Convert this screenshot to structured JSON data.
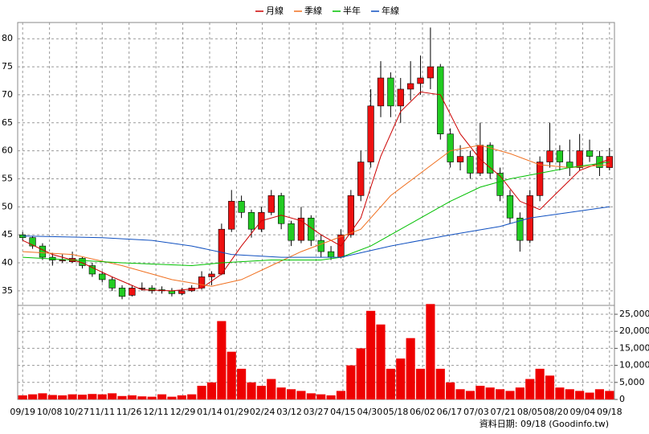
{
  "source": "資料日期: 09/18 (Goodinfo.tw)",
  "chart_data": [
    {
      "type": "candlestick",
      "up_color": "#ee1111",
      "down_color": "#22cc22",
      "xlim": [
        -0.5,
        59.5
      ],
      "ylim": [
        32.4,
        82.9
      ],
      "yticks": [
        35,
        40,
        45,
        50,
        55,
        60,
        65,
        70,
        75,
        80
      ],
      "grid": true,
      "open": [
        45,
        44.5,
        43,
        41,
        40.5,
        40.2,
        40.8,
        39.5,
        38,
        37,
        35.5,
        34.2,
        35.5,
        35.5,
        35.2,
        35,
        34.5,
        35,
        35.5,
        37.5,
        38,
        46,
        51,
        49,
        46,
        49,
        52,
        47,
        44,
        48,
        44,
        42,
        41,
        45,
        52,
        58,
        68,
        73,
        68,
        71,
        72,
        73,
        75,
        63,
        58,
        59,
        56,
        61,
        56,
        52,
        48,
        44,
        52,
        58,
        60,
        58,
        57,
        60,
        59,
        57
      ],
      "high": [
        45.5,
        44.8,
        43.5,
        41.8,
        41.5,
        42,
        41,
        40,
        38.5,
        37.5,
        36,
        36,
        36.5,
        36,
        35.8,
        35.5,
        35.5,
        36,
        38.5,
        38.5,
        47,
        53,
        52,
        49.5,
        50,
        53,
        52.5,
        47.5,
        50,
        48.5,
        45,
        43,
        46,
        53,
        60,
        71,
        76,
        74,
        73,
        76,
        77,
        82,
        75.5,
        64,
        61,
        60,
        65,
        61.5,
        57,
        53,
        49,
        53,
        59,
        65,
        61,
        62,
        63,
        62,
        60,
        60.5
      ],
      "low": [
        44,
        42.5,
        40.5,
        39.5,
        40,
        40,
        39,
        37.5,
        36.5,
        35,
        33.5,
        34,
        35,
        34.5,
        34.5,
        34,
        34.2,
        34.8,
        35.2,
        36,
        37.8,
        45.5,
        48,
        44.5,
        45.5,
        48.5,
        46,
        43,
        43.5,
        43,
        41,
        40.5,
        40.8,
        44.5,
        51,
        57,
        66,
        66,
        65,
        69,
        70,
        71,
        62,
        57,
        56.5,
        55,
        55.5,
        55,
        51,
        47,
        42,
        43.5,
        51,
        57,
        56.5,
        55.5,
        56.5,
        58,
        55.5,
        56.5
      ],
      "close": [
        44.5,
        43,
        41,
        40.5,
        40.5,
        40.8,
        39.5,
        38,
        37,
        35.5,
        34,
        35.5,
        35.5,
        35,
        35,
        34.5,
        35,
        35.5,
        37.5,
        38,
        46,
        51,
        49,
        46,
        49,
        52,
        47,
        44,
        48,
        44,
        42,
        41,
        45,
        52,
        58,
        68,
        73,
        68,
        71,
        72,
        73,
        75,
        63,
        58,
        59,
        56,
        61,
        56,
        52,
        48,
        44,
        52,
        58,
        60,
        58,
        57,
        60,
        59,
        57,
        59
      ],
      "series": [
        {
          "name": "月線",
          "color": "#cc0000",
          "x": [
            0,
            3,
            6,
            9,
            12,
            15,
            18,
            20,
            22,
            24,
            26,
            28,
            30,
            32,
            34,
            36,
            38,
            40,
            42,
            44,
            46,
            48,
            50,
            52,
            54,
            56,
            59
          ],
          "values": [
            44,
            41.5,
            40,
            37.5,
            35.2,
            35,
            35.5,
            38,
            43,
            47.5,
            48.5,
            47.5,
            45,
            43,
            48,
            59,
            67,
            70.5,
            70,
            63,
            58.5,
            55.5,
            51,
            49.5,
            53,
            56.5,
            58.5
          ]
        },
        {
          "name": "季線",
          "color": "#f07020",
          "x": [
            0,
            5,
            10,
            15,
            19,
            22,
            25,
            28,
            31,
            34,
            37,
            40,
            43,
            46,
            49,
            52,
            55,
            59
          ],
          "values": [
            42,
            41.5,
            39.5,
            37,
            35.8,
            37,
            39.5,
            42,
            44,
            46,
            52,
            56,
            60,
            61,
            59.5,
            57.5,
            57,
            57.5
          ]
        },
        {
          "name": "半年",
          "color": "#00c000",
          "x": [
            0,
            5,
            10,
            17,
            20,
            25,
            30,
            32,
            35,
            37,
            40,
            43,
            46,
            49,
            52,
            55,
            59
          ],
          "values": [
            41,
            40.5,
            40,
            39.5,
            40,
            40.5,
            40.5,
            41,
            43,
            45,
            48,
            51,
            53.5,
            55,
            56,
            57,
            58
          ]
        },
        {
          "name": "年線",
          "color": "#1050c0",
          "x": [
            0,
            8,
            13,
            17,
            21,
            26,
            30,
            32,
            37,
            43,
            48,
            51,
            55,
            59
          ],
          "values": [
            44.8,
            44.5,
            44,
            43,
            41.5,
            41,
            41,
            41,
            43,
            45,
            46.5,
            48,
            49,
            50
          ]
        }
      ]
    },
    {
      "type": "bar",
      "color": "#ee0000",
      "xlim": [
        -0.5,
        59.5
      ],
      "ylim": [
        0,
        27600
      ],
      "yticks": [
        0,
        {
          "value": 5000,
          "label": "5,000"
        },
        {
          "value": 10000,
          "label": "10,000"
        },
        {
          "value": 15000,
          "label": "15,000"
        },
        {
          "value": 20000,
          "label": "20,000"
        },
        {
          "value": 25000,
          "label": "25,000"
        }
      ],
      "xticks": [
        {
          "value": 0,
          "label": "09/19"
        },
        {
          "value": 2.7,
          "label": "10/08"
        },
        {
          "value": 5.4,
          "label": "10/27"
        },
        {
          "value": 8,
          "label": "11/11"
        },
        {
          "value": 10.7,
          "label": "11/26"
        },
        {
          "value": 13.4,
          "label": "12/11"
        },
        {
          "value": 16.1,
          "label": "12/29"
        },
        {
          "value": 18.8,
          "label": "01/14"
        },
        {
          "value": 21.5,
          "label": "01/29"
        },
        {
          "value": 24.1,
          "label": "02/24"
        },
        {
          "value": 26.8,
          "label": "03/12"
        },
        {
          "value": 29.5,
          "label": "03/27"
        },
        {
          "value": 32.2,
          "label": "04/15"
        },
        {
          "value": 34.9,
          "label": "04/30"
        },
        {
          "value": 37.5,
          "label": "05/18"
        },
        {
          "value": 40.2,
          "label": "06/02"
        },
        {
          "value": 42.9,
          "label": "06/17"
        },
        {
          "value": 45.6,
          "label": "07/03"
        },
        {
          "value": 48.3,
          "label": "07/21"
        },
        {
          "value": 51,
          "label": "08/05"
        },
        {
          "value": 53.6,
          "label": "08/20"
        },
        {
          "value": 56.3,
          "label": "09/04"
        },
        {
          "value": 59,
          "label": "09/18"
        }
      ],
      "values": [
        1200,
        1500,
        1800,
        1300,
        1200,
        1500,
        1400,
        1600,
        1500,
        1800,
        1000,
        1200,
        900,
        800,
        1500,
        800,
        1200,
        1500,
        4000,
        5000,
        23000,
        14000,
        9000,
        5000,
        4000,
        6000,
        3500,
        3000,
        2500,
        1800,
        1500,
        1200,
        2500,
        10000,
        15000,
        26000,
        22000,
        9000,
        12000,
        18000,
        9000,
        28000,
        9000,
        5000,
        3000,
        2500,
        4000,
        3500,
        3000,
        2500,
        3500,
        6000,
        9000,
        7000,
        3500,
        3000,
        2500,
        2000,
        3000,
        2500
      ]
    }
  ]
}
